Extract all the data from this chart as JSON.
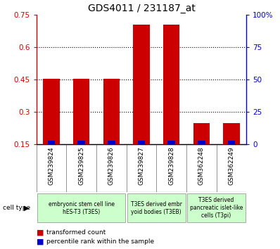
{
  "title": "GDS4011 / 231187_at",
  "samples": [
    "GSM239824",
    "GSM239825",
    "GSM239826",
    "GSM239827",
    "GSM239828",
    "GSM362248",
    "GSM362249"
  ],
  "transformed_count": [
    0.455,
    0.455,
    0.455,
    0.705,
    0.705,
    0.25,
    0.25
  ],
  "percentile_rank_height": [
    0.018,
    0.018,
    0.018,
    0.018,
    0.018,
    0.018,
    0.018
  ],
  "ylim_left": [
    0.15,
    0.75
  ],
  "ylim_right": [
    0,
    100
  ],
  "yticks_left": [
    0.15,
    0.3,
    0.45,
    0.6,
    0.75
  ],
  "yticks_right": [
    0,
    25,
    50,
    75,
    100
  ],
  "ytick_labels_right": [
    "0",
    "25",
    "50",
    "75",
    "100%"
  ],
  "cell_type_groups": [
    {
      "label": "embryonic stem cell line\nhES-T3 (T3ES)",
      "start": 0,
      "end": 3,
      "color": "#ccffcc"
    },
    {
      "label": "T3ES derived embr\nyoid bodies (T3EB)",
      "start": 3,
      "end": 5,
      "color": "#ccffcc"
    },
    {
      "label": "T3ES derived\npancreatic islet-like\ncells (T3pi)",
      "start": 5,
      "end": 7,
      "color": "#ccffcc"
    }
  ],
  "bar_color_red": "#cc0000",
  "bar_color_blue": "#0000cc",
  "bar_width": 0.55,
  "blue_bar_width": 0.25,
  "left_axis_color": "#cc0000",
  "right_axis_color": "#0000cc",
  "grid_color": "black",
  "bg_plot": "#ffffff",
  "bg_xtick": "#cccccc",
  "title_fontsize": 10,
  "ytick_fontsize": 7.5,
  "sample_fontsize": 6.5,
  "cell_fontsize": 5.5,
  "legend_fontsize": 6.5
}
